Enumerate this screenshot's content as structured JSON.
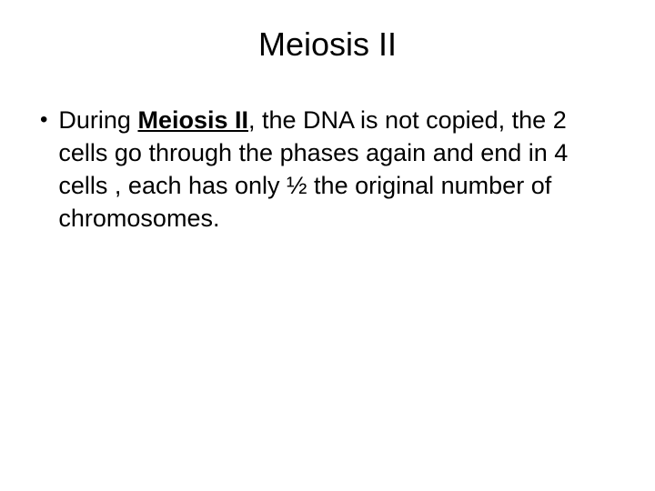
{
  "slide": {
    "title": "Meiosis II",
    "bullet": {
      "marker": "•",
      "prefix": "During ",
      "emphasized": "Meiosis II",
      "suffix": ", the DNA is not copied, the 2 cells go through the phases again and end in 4 cells , each has only ½  the original number of chromosomes."
    }
  },
  "styling": {
    "background_color": "#ffffff",
    "text_color": "#000000",
    "title_fontsize": 36,
    "body_fontsize": 27,
    "line_height": 36,
    "font_family": "Arial"
  }
}
